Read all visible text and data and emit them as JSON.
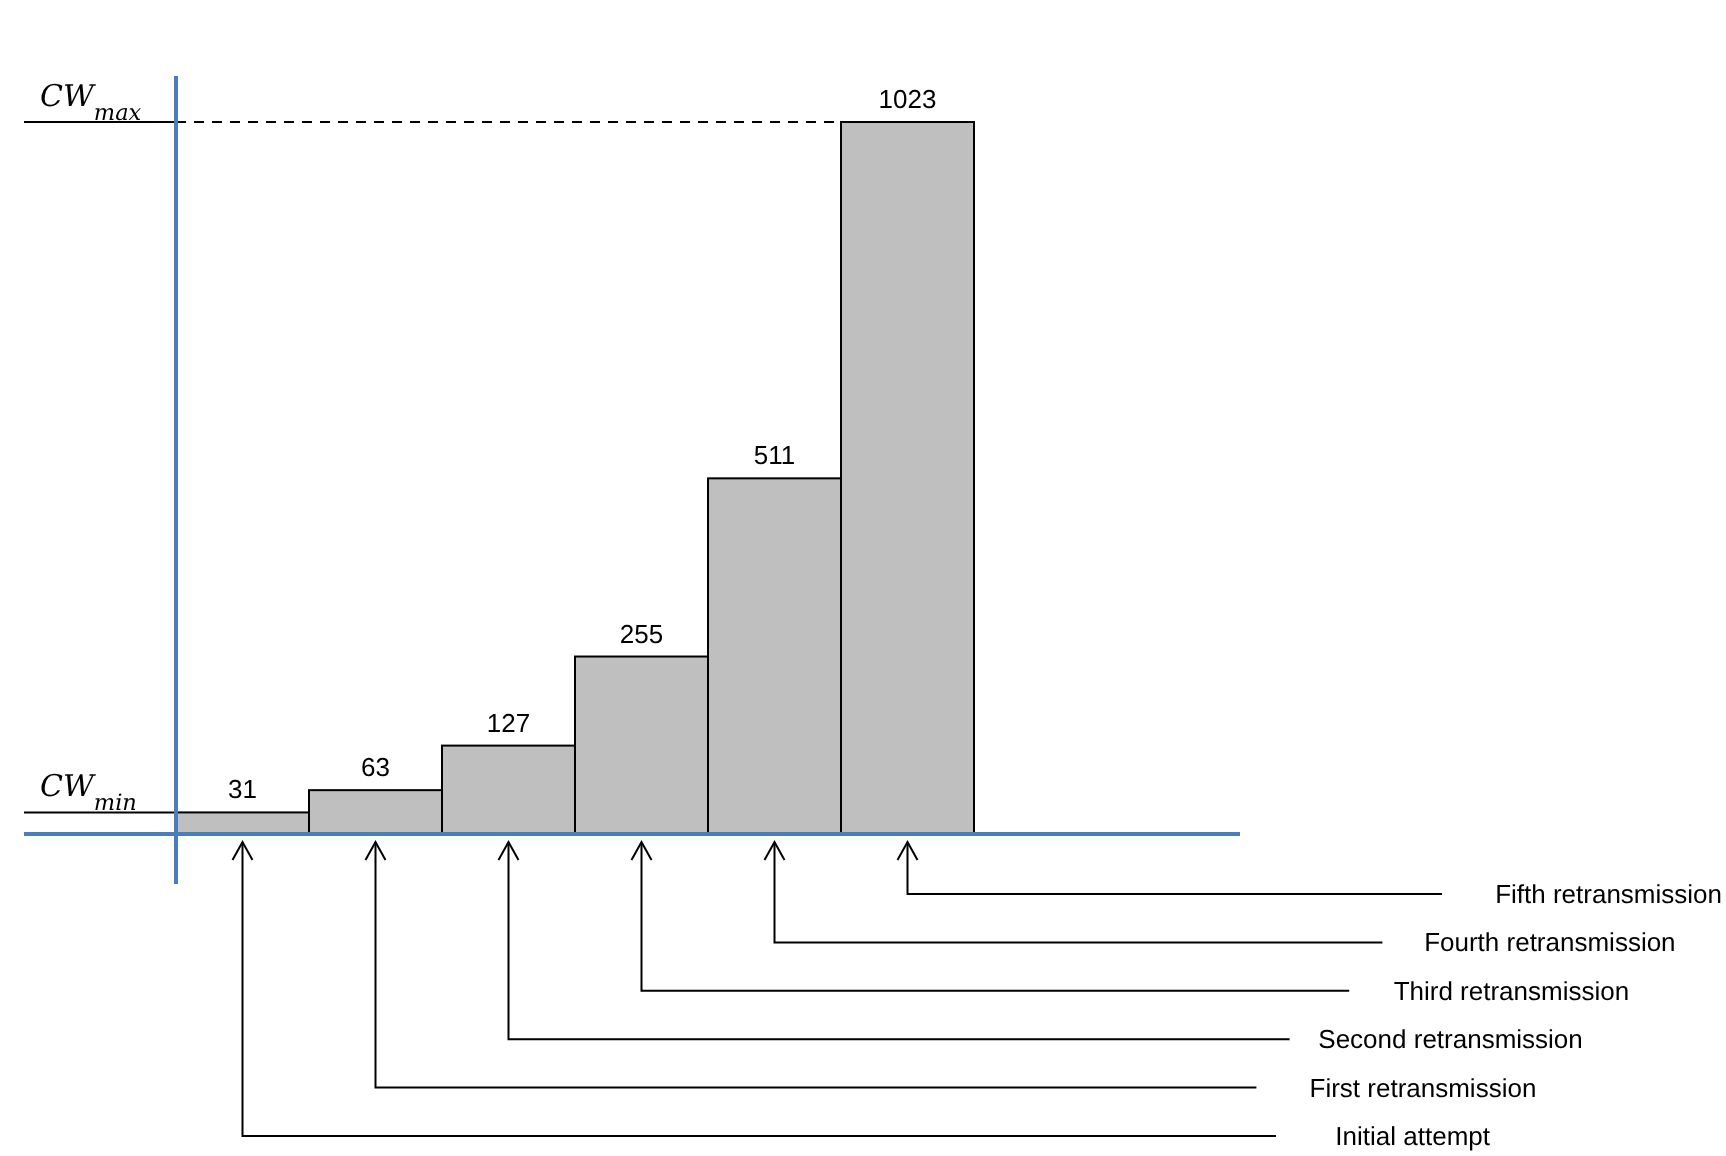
{
  "chart_data": {
    "type": "bar",
    "categories": [
      null,
      null,
      null,
      null,
      null,
      null
    ],
    "values": [
      31,
      63,
      127,
      255,
      511,
      1023
    ],
    "color": "#bfbfbf",
    "data_labels": true,
    "ref_lines": [
      {
        "axis": "y",
        "value": 1023,
        "label": "CW$_{max}$",
        "line_style": "dashed",
        "color": "#000000"
      },
      {
        "axis": "y",
        "value": 31,
        "label": "CW$_{min}$",
        "line_style": "solid",
        "color": "#000000"
      }
    ],
    "annotations": [
      "Initial attempt",
      "First retransmission",
      "Second retransmission",
      "Third retransmission",
      "Fourth retransmission",
      "Fifth retransmission"
    ]
  }
}
